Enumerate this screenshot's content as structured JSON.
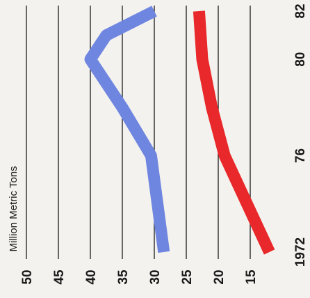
{
  "chart_data": {
    "type": "line",
    "ylabel": "Million Metric Tons",
    "ylim": [
      10,
      50
    ],
    "y_ticks": [
      "50",
      "45",
      "40",
      "35",
      "30",
      "25",
      "20",
      "15"
    ],
    "xlim": [
      1972,
      1982
    ],
    "x_ticks": [
      {
        "value": 1972,
        "label": "1972"
      },
      {
        "value": 1976,
        "label": "76"
      },
      {
        "value": 1980,
        "label": "80"
      },
      {
        "value": 1982,
        "label": "82"
      }
    ],
    "grid": true,
    "series": [
      {
        "color": "#6f86e0",
        "points": [
          [
            1972,
            28.5
          ],
          [
            1975,
            30
          ],
          [
            1976,
            30.5
          ],
          [
            1978,
            35
          ],
          [
            1980,
            40
          ],
          [
            1981,
            37.5
          ],
          [
            1982,
            30
          ]
        ]
      },
      {
        "color": "#e8282a",
        "points": [
          [
            1972,
            12
          ],
          [
            1974,
            15.5
          ],
          [
            1976,
            19
          ],
          [
            1978,
            21
          ],
          [
            1980,
            22.5
          ],
          [
            1982,
            23
          ]
        ]
      }
    ]
  }
}
